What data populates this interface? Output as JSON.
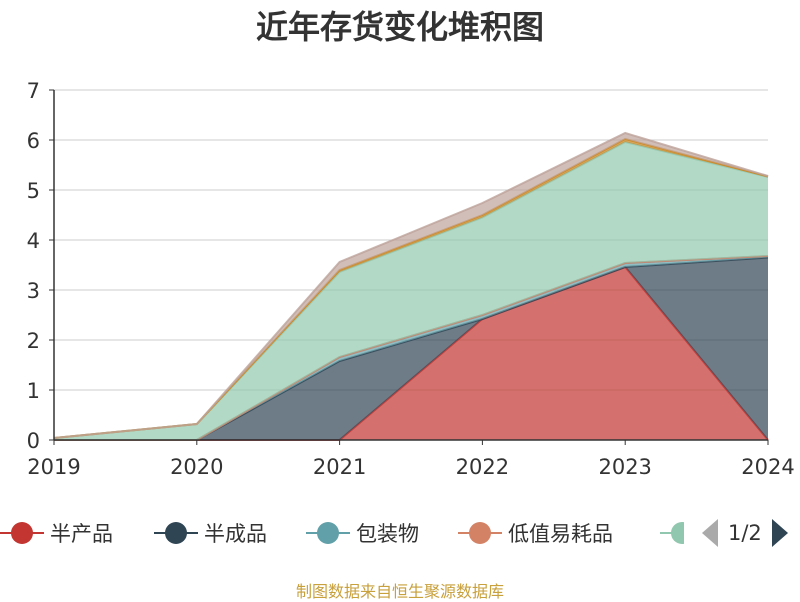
{
  "chart_data": {
    "type": "area",
    "stacked": true,
    "title": "近年存货变化堆积图",
    "categories": [
      "2019",
      "2020",
      "2021",
      "2022",
      "2023",
      "2024"
    ],
    "ylim": [
      0,
      7
    ],
    "yticks": [
      0,
      1,
      2,
      3,
      4,
      5,
      6,
      7
    ],
    "grid": true,
    "series": [
      {
        "name": "半产品",
        "color": "#c23531",
        "values": [
          0,
          0,
          0,
          2.42,
          3.46,
          0
        ]
      },
      {
        "name": "半成品",
        "color": "#2f4554",
        "values": [
          0,
          0,
          1.58,
          0,
          0,
          3.65
        ]
      },
      {
        "name": "包装物",
        "color": "#61a0a8",
        "values": [
          0,
          0,
          0.08,
          0.08,
          0.08,
          0.03
        ]
      },
      {
        "name": "低值易耗品",
        "color": "#d48265",
        "values": [
          0,
          0,
          0,
          0,
          0,
          0
        ]
      },
      {
        "name": "",
        "color": "#91c7ae",
        "values": [
          0.04,
          0.32,
          1.7,
          1.95,
          2.42,
          1.58
        ]
      },
      {
        "name": "",
        "color": "#ca8622",
        "values": [
          0,
          0,
          0.04,
          0.05,
          0.06,
          0.01
        ]
      },
      {
        "name": "",
        "color": "#bda29a",
        "values": [
          0,
          0,
          0.16,
          0.24,
          0.12,
          0.01
        ]
      }
    ]
  },
  "legend": {
    "items": [
      {
        "label": "半产品",
        "color": "#c23531"
      },
      {
        "label": "半成品",
        "color": "#2f4554"
      },
      {
        "label": "包装物",
        "color": "#61a0a8"
      },
      {
        "label": "低值易耗品",
        "color": "#d48265"
      }
    ],
    "partial_color": "#91c7ae",
    "page_text": "1/2"
  },
  "source_note": "制图数据来自恒生聚源数据库"
}
